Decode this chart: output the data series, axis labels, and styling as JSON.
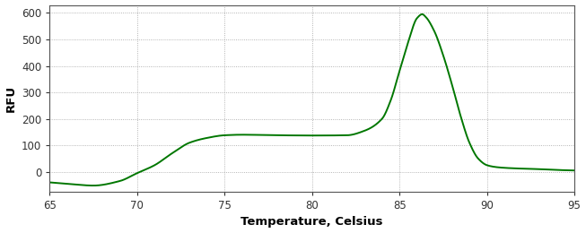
{
  "title": "",
  "xlabel": "Temperature, Celsius",
  "ylabel": "RFU",
  "xlim": [
    65,
    95
  ],
  "ylim": [
    -75,
    630
  ],
  "yticks": [
    0,
    100,
    200,
    300,
    400,
    500,
    600
  ],
  "xticks": [
    65,
    70,
    75,
    80,
    85,
    90,
    95
  ],
  "line_color": "#007700",
  "line_width": 1.4,
  "background_color": "#ffffff",
  "grid_color": "#888888",
  "tick_label_color": "#333333",
  "tick_label_fontsize": 8.5,
  "xlabel_fontsize": 9.5,
  "ylabel_fontsize": 9.5
}
